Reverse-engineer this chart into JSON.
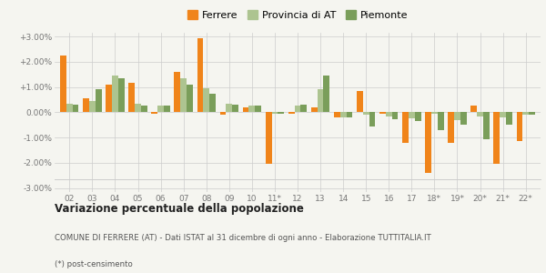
{
  "years": [
    "02",
    "03",
    "04",
    "05",
    "06",
    "07",
    "08",
    "09",
    "10",
    "11*",
    "12",
    "13",
    "14",
    "15",
    "16",
    "17",
    "18*",
    "19*",
    "20*",
    "21*",
    "22*"
  ],
  "ferrere": [
    2.25,
    0.55,
    1.1,
    1.15,
    -0.05,
    1.6,
    2.95,
    -0.1,
    0.2,
    -2.05,
    -0.07,
    0.2,
    -0.2,
    0.85,
    -0.05,
    -1.2,
    -2.4,
    -1.2,
    0.25,
    -2.05,
    -1.15
  ],
  "provincia_at": [
    0.35,
    0.45,
    1.45,
    0.35,
    0.25,
    1.35,
    0.95,
    0.35,
    0.27,
    -0.05,
    0.27,
    0.9,
    -0.2,
    -0.1,
    -0.18,
    -0.25,
    -0.05,
    -0.3,
    -0.18,
    -0.2,
    -0.08
  ],
  "piemonte": [
    0.3,
    0.9,
    1.35,
    0.28,
    0.27,
    1.08,
    0.72,
    0.3,
    0.27,
    -0.07,
    0.3,
    1.45,
    -0.2,
    -0.55,
    -0.28,
    -0.35,
    -0.7,
    -0.48,
    -1.05,
    -0.48,
    -0.1
  ],
  "ferrere_color": "#f0841a",
  "provincia_color": "#adc490",
  "piemonte_color": "#7a9e5a",
  "bg_color": "#f5f5f0",
  "ylim": [
    -3.0,
    3.0
  ],
  "yticks": [
    -3.0,
    -2.0,
    -1.0,
    0.0,
    1.0,
    2.0,
    3.0
  ],
  "title_bold": "Variazione percentuale della popolazione",
  "subtitle": "COMUNE DI FERRERE (AT) - Dati ISTAT al 31 dicembre di ogni anno - Elaborazione TUTTITALIA.IT",
  "footnote": "(*) post-censimento",
  "legend_labels": [
    "Ferrere",
    "Provincia di AT",
    "Piemonte"
  ]
}
